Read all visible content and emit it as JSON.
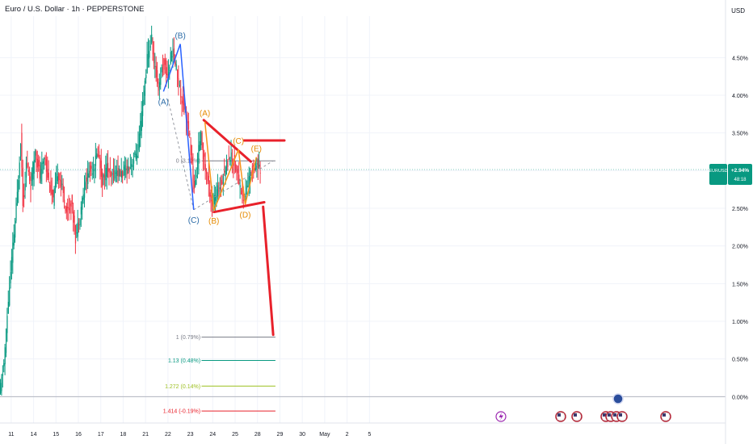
{
  "title": "Euro / U.S. Dollar · 1h · PEPPERSTONE",
  "currency": "USD",
  "price_badge": {
    "symbol": "EURUSD",
    "value": "+2.94%",
    "countdown": "48:18",
    "color": "#089981"
  },
  "colors": {
    "up": "#089981",
    "down": "#f23645",
    "annot": "#e8212b",
    "wave_blue": "#2962ff",
    "wave_blue_label": "#2a6aa6",
    "wave_orange": "#f7931a",
    "wave_orange_label": "#e68a00"
  },
  "chart_data": {
    "type": "candlestick",
    "title": "Euro / U.S. Dollar · 1h · PEPPERSTONE",
    "y_unit": "% change",
    "ylim": [
      -0.35,
      5.05
    ],
    "yticks": [
      "0.00%",
      "0.50%",
      "1.00%",
      "1.50%",
      "2.00%",
      "2.50%",
      "3.00%",
      "3.50%",
      "4.00%",
      "4.50%"
    ],
    "ytick_values": [
      0,
      0.5,
      1.0,
      1.5,
      2.0,
      2.5,
      3.0,
      3.5,
      4.0,
      4.5
    ],
    "xlim": [
      0,
      32.4
    ],
    "xticks": [
      "11",
      "14",
      "15",
      "16",
      "17",
      "18",
      "21",
      "22",
      "23",
      "24",
      "25",
      "28",
      "29",
      "30",
      "May",
      "2",
      "5"
    ],
    "xtick_pos": [
      0.5,
      1.5,
      2.5,
      3.5,
      4.5,
      5.5,
      6.5,
      7.5,
      8.5,
      9.5,
      10.5,
      11.5,
      12.5,
      13.5,
      14.5,
      15.5,
      16.5
    ],
    "grid": true,
    "path": [
      [
        0.0,
        0.02
      ],
      [
        0.2,
        0.45
      ],
      [
        0.4,
        1.3
      ],
      [
        0.6,
        2.0
      ],
      [
        0.8,
        2.7
      ],
      [
        0.95,
        3.45
      ],
      [
        1.05,
        2.55
      ],
      [
        1.2,
        3.1
      ],
      [
        1.4,
        2.8
      ],
      [
        1.6,
        3.3
      ],
      [
        1.8,
        2.9
      ],
      [
        2.0,
        3.2
      ],
      [
        2.2,
        2.85
      ],
      [
        2.4,
        2.6
      ],
      [
        2.6,
        3.0
      ],
      [
        2.8,
        2.75
      ],
      [
        3.0,
        2.45
      ],
      [
        3.2,
        2.6
      ],
      [
        3.4,
        2.1
      ],
      [
        3.6,
        2.45
      ],
      [
        3.8,
        2.8
      ],
      [
        4.0,
        3.0
      ],
      [
        4.2,
        3.05
      ],
      [
        4.4,
        3.25
      ],
      [
        4.6,
        2.85
      ],
      [
        4.8,
        3.05
      ],
      [
        5.0,
        2.9
      ],
      [
        5.2,
        3.0
      ],
      [
        5.4,
        2.95
      ],
      [
        5.6,
        3.0
      ],
      [
        5.8,
        3.05
      ],
      [
        6.0,
        3.15
      ],
      [
        6.2,
        3.3
      ],
      [
        6.4,
        3.9
      ],
      [
        6.6,
        4.5
      ],
      [
        6.8,
        4.75
      ],
      [
        6.9,
        4.4
      ],
      [
        7.1,
        4.1
      ],
      [
        7.3,
        4.45
      ],
      [
        7.5,
        4.25
      ],
      [
        7.7,
        4.6
      ],
      [
        7.9,
        4.35
      ],
      [
        8.1,
        4.0
      ],
      [
        8.3,
        3.8
      ],
      [
        8.5,
        3.4
      ],
      [
        8.7,
        2.7
      ],
      [
        8.85,
        3.2
      ],
      [
        9.0,
        3.45
      ],
      [
        9.15,
        3.1
      ],
      [
        9.3,
        2.85
      ],
      [
        9.5,
        2.55
      ],
      [
        9.7,
        2.7
      ],
      [
        9.9,
        2.85
      ],
      [
        10.1,
        3.05
      ],
      [
        10.3,
        3.2
      ],
      [
        10.5,
        3.1
      ],
      [
        10.7,
        2.85
      ],
      [
        10.9,
        2.6
      ],
      [
        11.1,
        2.85
      ],
      [
        11.3,
        3.05
      ],
      [
        11.5,
        3.1
      ],
      [
        11.65,
        2.95
      ]
    ],
    "waves": {
      "blue": {
        "labels": [
          "(A)",
          "(B)",
          "(C)"
        ],
        "points": [
          [
            7.3,
            4.05
          ],
          [
            8.05,
            4.68
          ],
          [
            8.65,
            2.48
          ]
        ]
      },
      "orange": {
        "labels": [
          "(A)",
          "(B)",
          "(C)",
          "(D)",
          "(E)"
        ],
        "points": [
          [
            9.15,
            3.65
          ],
          [
            9.55,
            2.47
          ],
          [
            10.65,
            3.28
          ],
          [
            10.95,
            2.55
          ],
          [
            11.45,
            3.18
          ]
        ]
      }
    },
    "trendlines": [
      {
        "from": [
          9.1,
          3.67
        ],
        "to": [
          11.2,
          3.12
        ]
      },
      {
        "from": [
          9.55,
          2.45
        ],
        "to": [
          11.8,
          2.58
        ]
      },
      {
        "from": [
          10.9,
          3.4
        ],
        "to": [
          12.7,
          3.4
        ]
      },
      {
        "from": [
          11.75,
          2.52
        ],
        "to": [
          12.2,
          0.82
        ]
      }
    ],
    "dashed": [
      {
        "from": [
          7.5,
          3.95
        ],
        "to": [
          8.65,
          2.48
        ]
      },
      {
        "from": [
          8.65,
          2.48
        ],
        "to": [
          12.2,
          3.13
        ]
      }
    ],
    "fib_levels": [
      {
        "label": "0 (3.13%)",
        "value": 3.13,
        "color": "#787b86"
      },
      {
        "label": "1 (0.79%)",
        "value": 0.79,
        "color": "#787b86"
      },
      {
        "label": "1.13 (0.48%)",
        "value": 0.48,
        "color": "#089981"
      },
      {
        "label": "1.272 (0.14%)",
        "value": 0.14,
        "color": "#9cbf1f"
      },
      {
        "label": "1.414 (-0.19%)",
        "value": -0.19,
        "color": "#e8212b"
      }
    ],
    "baseline": 0
  }
}
